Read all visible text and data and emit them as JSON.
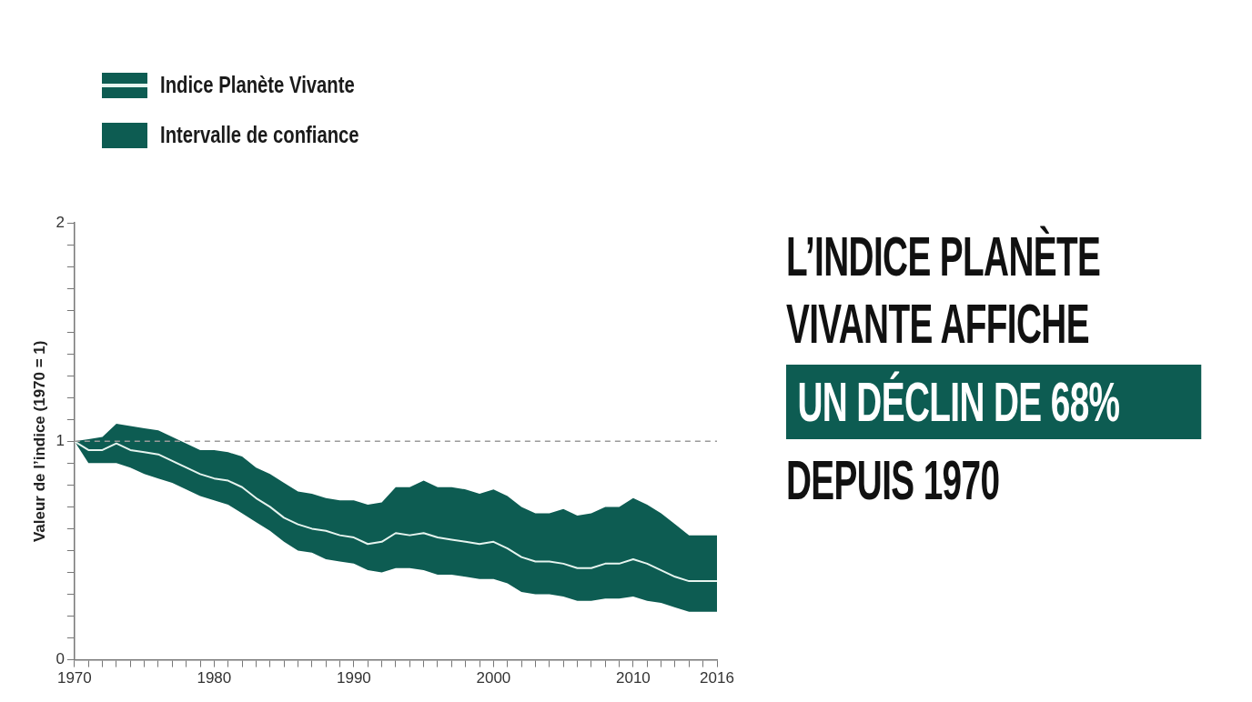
{
  "chart_data": {
    "type": "line",
    "title": "L’INDICE PLANÈTE VIVANTE AFFICHE",
    "subtitle": "UN DÉCLIN DE 68%",
    "annotations": [
      "DEPUIS 1970",
      "Intervalle de confiance"
    ],
    "ylabel": "Valeur de l’indice (1970 = 1)",
    "x": [
      1970,
      1971,
      1972,
      1973,
      1974,
      1975,
      1976,
      1977,
      1978,
      1979,
      1980,
      1981,
      1982,
      1983,
      1984,
      1985,
      1986,
      1987,
      1988,
      1989,
      1990,
      1991,
      1992,
      1993,
      1994,
      1995,
      1996,
      1997,
      1998,
      1999,
      2000,
      2001,
      2002,
      2003,
      2004,
      2005,
      2006,
      2007,
      2008,
      2009,
      2010,
      2011,
      2012,
      2013,
      2014,
      2015,
      2016
    ],
    "series": [
      {
        "name": "Indice Planète Vivante",
        "color": "#e6f4ef",
        "values": [
          1.0,
          0.96,
          0.96,
          0.99,
          0.96,
          0.95,
          0.94,
          0.91,
          0.88,
          0.85,
          0.83,
          0.82,
          0.79,
          0.74,
          0.7,
          0.65,
          0.62,
          0.6,
          0.59,
          0.57,
          0.56,
          0.53,
          0.54,
          0.58,
          0.57,
          0.58,
          0.56,
          0.55,
          0.54,
          0.53,
          0.54,
          0.51,
          0.47,
          0.45,
          0.45,
          0.44,
          0.42,
          0.42,
          0.44,
          0.44,
          0.46,
          0.44,
          0.41,
          0.38,
          0.36,
          0.36,
          0.36
        ],
        "upper": [
          1.0,
          1.01,
          1.02,
          1.08,
          1.07,
          1.06,
          1.05,
          1.02,
          0.99,
          0.96,
          0.96,
          0.95,
          0.93,
          0.88,
          0.85,
          0.81,
          0.77,
          0.76,
          0.74,
          0.73,
          0.73,
          0.71,
          0.72,
          0.79,
          0.79,
          0.82,
          0.79,
          0.79,
          0.78,
          0.76,
          0.78,
          0.75,
          0.7,
          0.67,
          0.67,
          0.69,
          0.66,
          0.67,
          0.7,
          0.7,
          0.74,
          0.71,
          0.67,
          0.62,
          0.57,
          0.57,
          0.57
        ],
        "lower": [
          1.0,
          0.9,
          0.9,
          0.9,
          0.88,
          0.85,
          0.83,
          0.81,
          0.78,
          0.75,
          0.73,
          0.71,
          0.67,
          0.63,
          0.59,
          0.54,
          0.5,
          0.49,
          0.46,
          0.45,
          0.44,
          0.41,
          0.4,
          0.42,
          0.42,
          0.41,
          0.39,
          0.39,
          0.38,
          0.37,
          0.37,
          0.35,
          0.31,
          0.3,
          0.3,
          0.29,
          0.27,
          0.27,
          0.28,
          0.28,
          0.29,
          0.27,
          0.26,
          0.24,
          0.22,
          0.22,
          0.22
        ]
      }
    ],
    "xlim": [
      1970,
      2016
    ],
    "xticks": [
      1970,
      {
        "value": 1971,
        "label": null
      },
      {
        "value": 1972,
        "label": null
      },
      {
        "value": 1973,
        "label": null
      },
      {
        "value": 1974,
        "label": null
      },
      {
        "value": 1975,
        "label": null
      },
      {
        "value": 1976,
        "label": null
      },
      {
        "value": 1977,
        "label": null
      },
      {
        "value": 1978,
        "label": null
      },
      {
        "value": 1979,
        "label": null
      },
      1980,
      {
        "value": 1981,
        "label": null
      },
      {
        "value": 1982,
        "label": null
      },
      {
        "value": 1983,
        "label": null
      },
      {
        "value": 1984,
        "label": null
      },
      {
        "value": 1985,
        "label": null
      },
      {
        "value": 1986,
        "label": null
      },
      {
        "value": 1987,
        "label": null
      },
      {
        "value": 1988,
        "label": null
      },
      {
        "value": 1989,
        "label": null
      },
      1990,
      {
        "value": 1991,
        "label": null
      },
      {
        "value": 1992,
        "label": null
      },
      {
        "value": 1993,
        "label": null
      },
      {
        "value": 1994,
        "label": null
      },
      {
        "value": 1995,
        "label": null
      },
      {
        "value": 1996,
        "label": null
      },
      {
        "value": 1997,
        "label": null
      },
      {
        "value": 1998,
        "label": null
      },
      {
        "value": 1999,
        "label": null
      },
      2000,
      {
        "value": 2001,
        "label": null
      },
      {
        "value": 2002,
        "label": null
      },
      {
        "value": 2003,
        "label": null
      },
      {
        "value": 2004,
        "label": null
      },
      {
        "value": 2005,
        "label": null
      },
      {
        "value": 2006,
        "label": null
      },
      {
        "value": 2007,
        "label": null
      },
      {
        "value": 2008,
        "label": null
      },
      {
        "value": 2009,
        "label": null
      },
      2010,
      {
        "value": 2011,
        "label": null
      },
      {
        "value": 2012,
        "label": null
      },
      {
        "value": 2013,
        "label": null
      },
      {
        "value": 2014,
        "label": null
      },
      {
        "value": 2015,
        "label": null
      },
      2016
    ],
    "ylim": [
      0,
      2
    ],
    "yticks": [
      0,
      {
        "value": 0.1,
        "label": null
      },
      {
        "value": 0.2,
        "label": null
      },
      {
        "value": 0.3,
        "label": null
      },
      {
        "value": 0.4,
        "label": null
      },
      {
        "value": 0.5,
        "label": null
      },
      {
        "value": 0.6,
        "label": null
      },
      {
        "value": 0.7,
        "label": null
      },
      {
        "value": 0.8,
        "label": null
      },
      {
        "value": 0.9,
        "label": null
      },
      1,
      {
        "value": 1.1,
        "label": null
      },
      {
        "value": 1.2,
        "label": null
      },
      {
        "value": 1.3,
        "label": null
      },
      {
        "value": 1.4,
        "label": null
      },
      {
        "value": 1.5,
        "label": null
      },
      {
        "value": 1.6,
        "label": null
      },
      {
        "value": 1.7,
        "label": null
      },
      {
        "value": 1.8,
        "label": null
      },
      {
        "value": 1.9,
        "label": null
      },
      2
    ],
    "ref_lines": [
      {
        "axis": "y",
        "value": 1,
        "color": "#9a9a9a",
        "line_style": "dashed"
      }
    ],
    "grid": false,
    "legend": "top left",
    "marker": "none",
    "line_style": "solid"
  }
}
